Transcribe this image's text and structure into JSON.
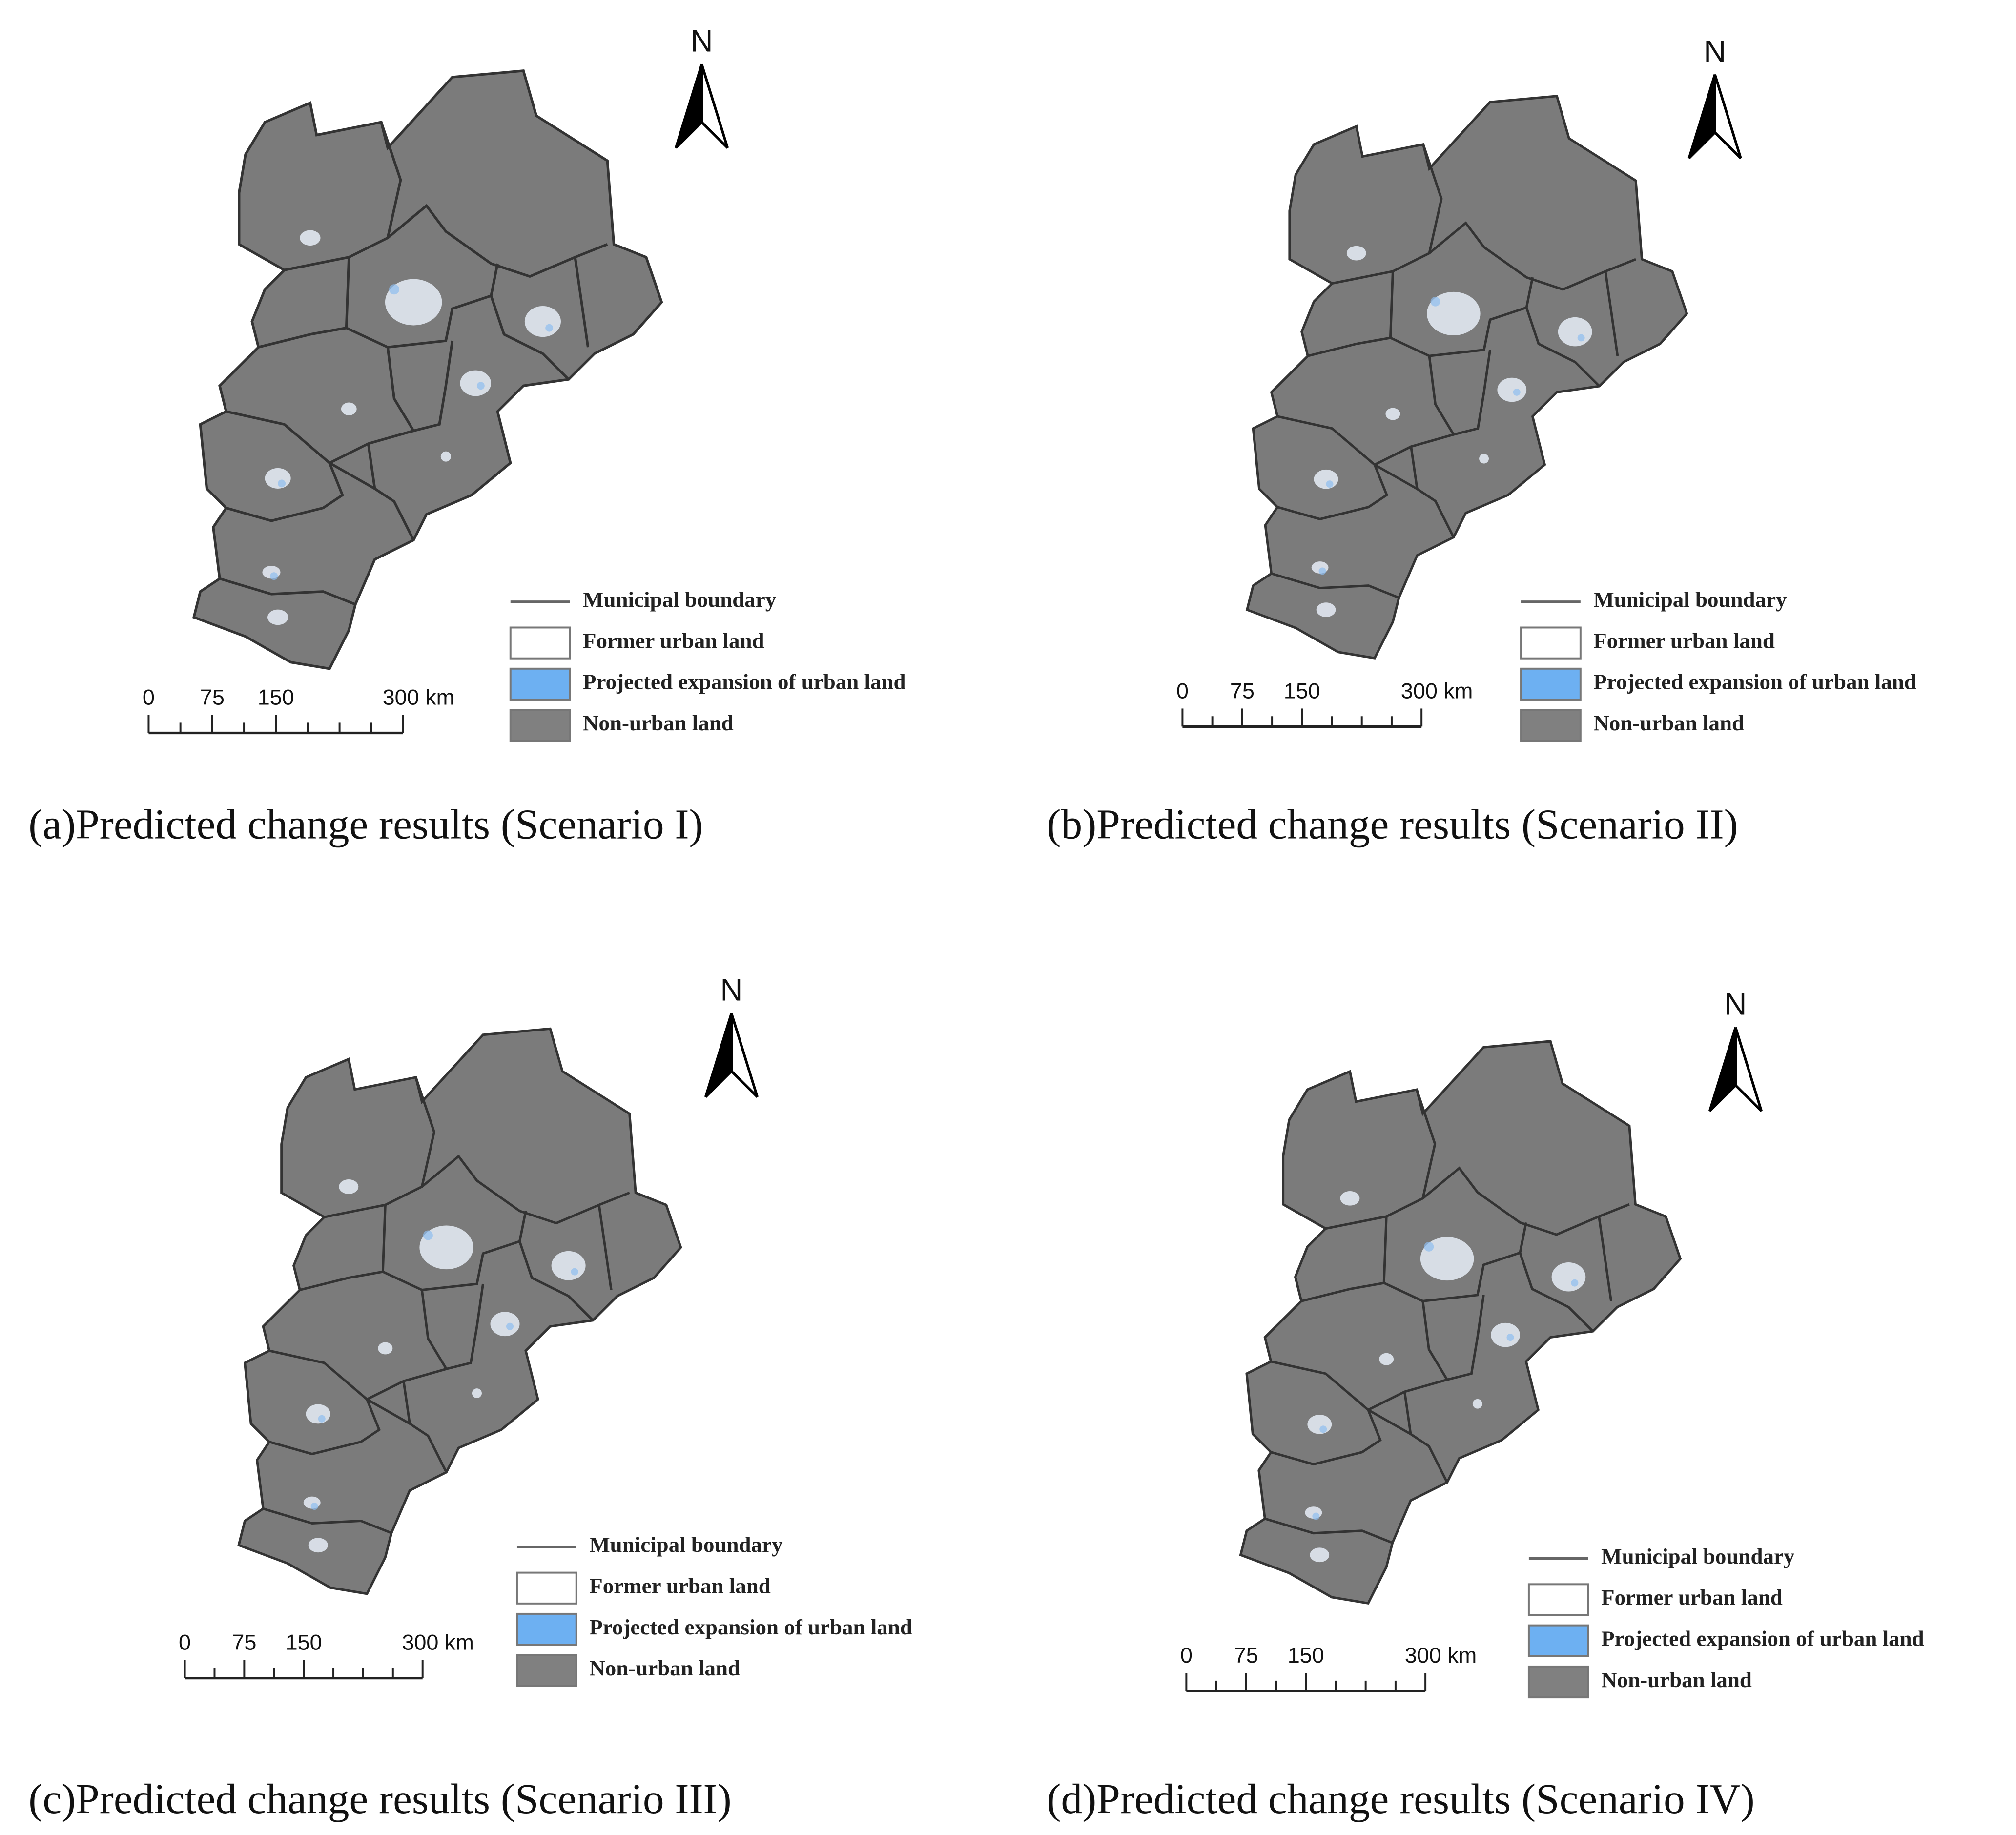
{
  "panels": [
    {
      "north": "N",
      "scale_bar": {
        "labels": [
          "0",
          "75",
          "150",
          "300 km"
        ]
      },
      "legend": [
        "Municipal boundary",
        "Former urban land",
        "Projected expansion of urban land",
        "Non-urban land"
      ],
      "caption": "(a)Predicted change results (Scenario I)"
    },
    {
      "north": "N",
      "scale_bar": {
        "labels": [
          "0",
          "75",
          "150",
          "300 km"
        ]
      },
      "legend": [
        "Municipal boundary",
        "Former urban land",
        "Projected expansion of urban land",
        "Non-urban land"
      ],
      "caption": "(b)Predicted change results (Scenario II)"
    },
    {
      "north": "N",
      "scale_bar": {
        "labels": [
          "0",
          "75",
          "150",
          "300 km"
        ]
      },
      "legend": [
        "Municipal boundary",
        "Former urban land",
        "Projected expansion of urban land",
        "Non-urban land"
      ],
      "caption": "(c)Predicted change results (Scenario III)"
    },
    {
      "north": "N",
      "scale_bar": {
        "labels": [
          "0",
          "75",
          "150",
          "300 km"
        ]
      },
      "legend": [
        "Municipal boundary",
        "Former urban land",
        "Projected expansion of urban land",
        "Non-urban land"
      ],
      "caption": "(d)Predicted change results (Scenario IV)"
    }
  ]
}
